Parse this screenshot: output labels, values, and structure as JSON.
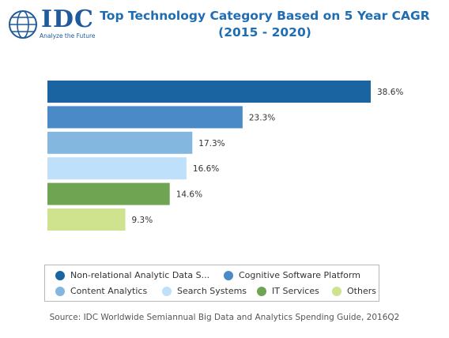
{
  "logo": {
    "wordmark": "IDC",
    "tagline": "Analyze the Future",
    "color": "#1e5a9c"
  },
  "chart_data": {
    "type": "bar",
    "orientation": "horizontal",
    "title": "Top Technology Category Based on 5 Year CAGR (2015 - 2020)",
    "categories": [
      "Non-relational Analytic Data S...",
      "Cognitive Software Platform",
      "Content Analytics",
      "Search Systems",
      "IT Services",
      "Others"
    ],
    "values": [
      38.6,
      23.3,
      17.3,
      16.6,
      14.6,
      9.3
    ],
    "value_labels": [
      "38.6%",
      "23.3%",
      "17.3%",
      "16.6%",
      "14.6%",
      "9.3%"
    ],
    "colors": [
      "#1a64a2",
      "#4a8ac6",
      "#84b7e0",
      "#bfe0fb",
      "#6fa552",
      "#cfe28d"
    ],
    "xlim": [
      0,
      38.6
    ],
    "grid": false,
    "legend_position": "bottom"
  },
  "source": "Source: IDC Worldwide Semiannual Big Data and Analytics Spending Guide, 2016Q2"
}
